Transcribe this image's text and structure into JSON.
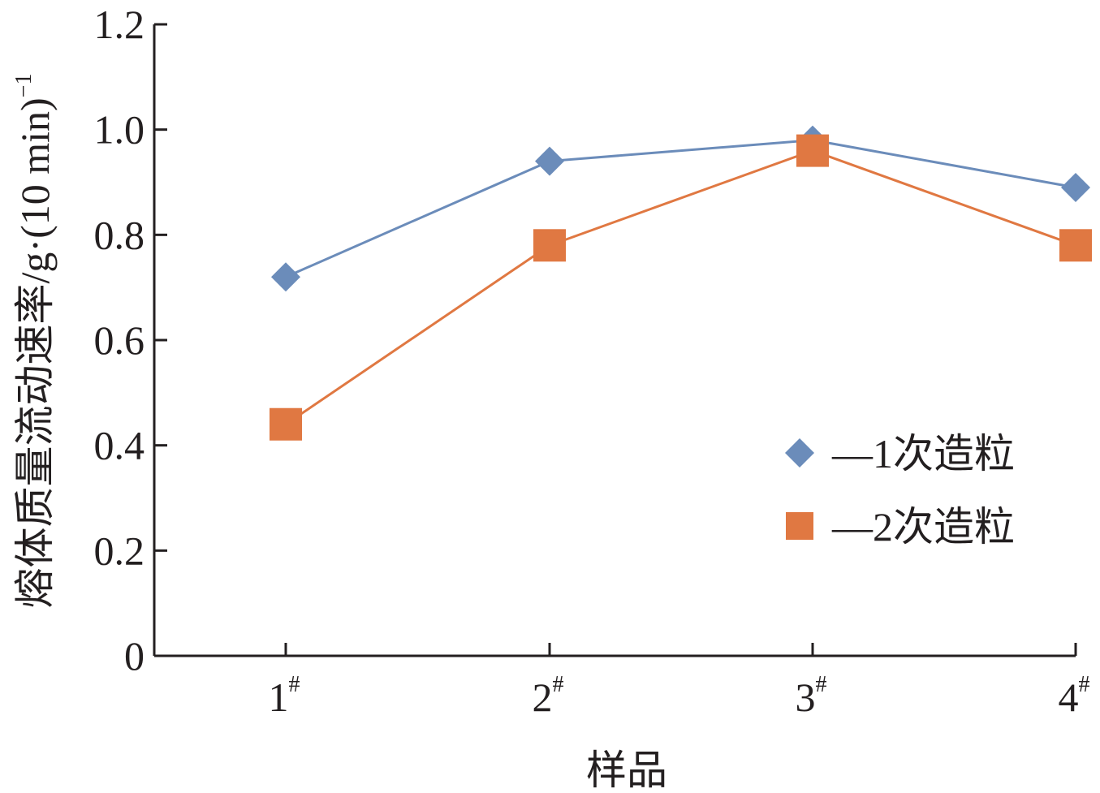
{
  "chart_data": {
    "type": "line",
    "categories": [
      "1",
      "2",
      "3",
      "4"
    ],
    "category_suffix": "#",
    "xlabel": "样品",
    "ylabel": "熔体质量流动速率/g·(10 min)",
    "ylabel_sup": "−1",
    "ylim": [
      0,
      1.2
    ],
    "yticks": [
      "0",
      "0.2",
      "0.4",
      "0.6",
      "0.8",
      "1.0",
      "1.2"
    ],
    "ytick_values": [
      0,
      0.2,
      0.4,
      0.6,
      0.8,
      1.0,
      1.2
    ],
    "grid": false,
    "legend_position": "right",
    "series": [
      {
        "name": "—1次造粒",
        "values": [
          0.72,
          0.94,
          0.98,
          0.89
        ],
        "color": "#6b8cba",
        "marker": "diamond"
      },
      {
        "name": "—2次造粒",
        "values": [
          0.44,
          0.78,
          0.96,
          0.78
        ],
        "color": "#e07842",
        "marker": "square"
      }
    ]
  }
}
